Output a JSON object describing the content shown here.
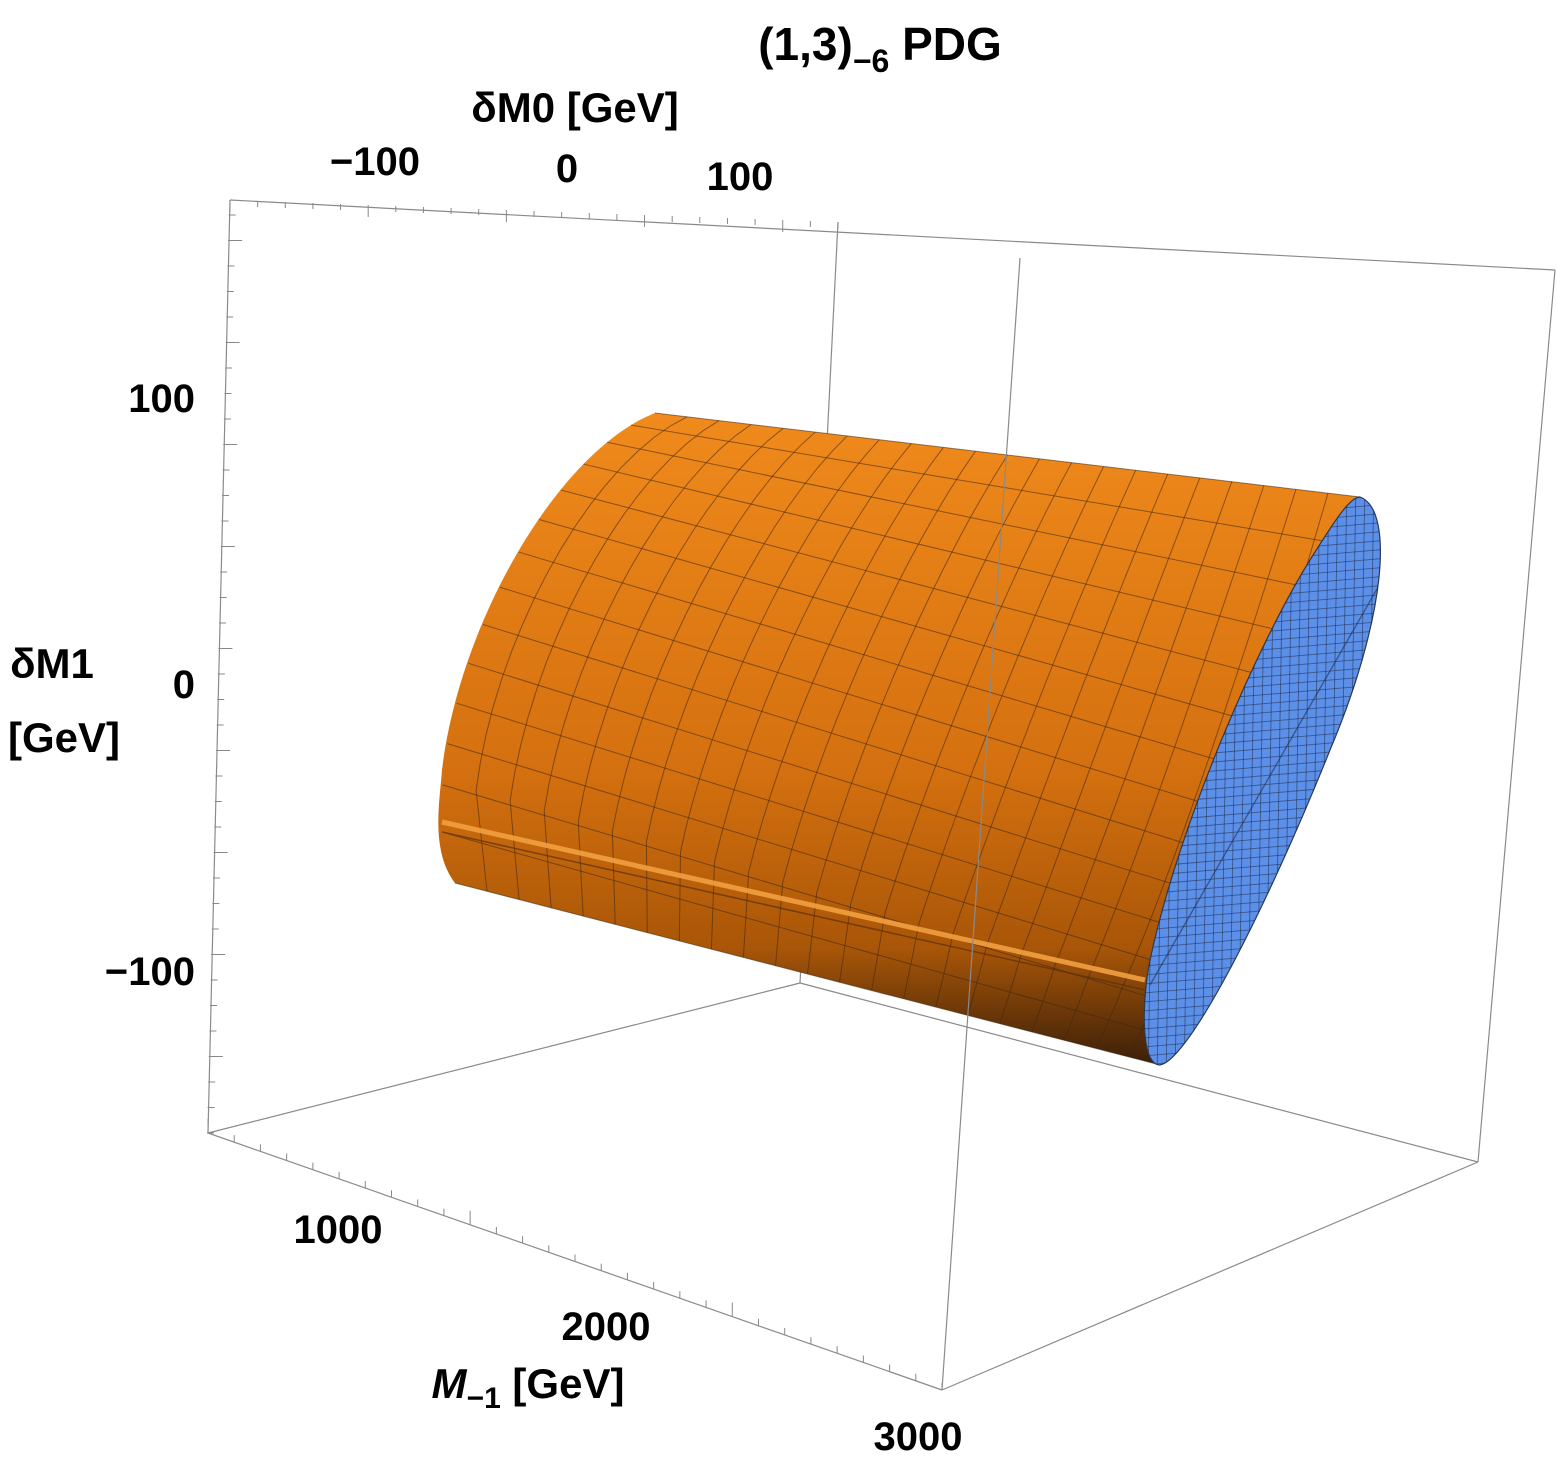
{
  "chart_data": {
    "type": "surface3d",
    "title": {
      "main": "(1,3)",
      "sub": "−6",
      "suffix": " PDG"
    },
    "axes": {
      "dM0": {
        "label": "δM0 [GeV]",
        "ticks": [
          "−100",
          "0",
          "100"
        ]
      },
      "dM1": {
        "label_line1": "δM1",
        "label_line2": "[GeV]",
        "ticks": [
          "100",
          "0",
          "−100"
        ]
      },
      "M": {
        "label_main": "M",
        "label_sub": "−1",
        "label_suffix": " [GeV]",
        "ticks": [
          "1000",
          "2000",
          "3000"
        ]
      }
    },
    "surface": {
      "description": "elliptic cylinder along M axis",
      "M_range": [
        1200,
        3000
      ],
      "dM0_range": [
        -95,
        95
      ],
      "dM1_range": [
        -100,
        100
      ],
      "colors": {
        "side_light": "#f08a1c",
        "side_dark": "#3a1f08",
        "cap": "#5b8fe8",
        "mesh": "#2a2a3a"
      }
    },
    "box_color": "#888888"
  }
}
